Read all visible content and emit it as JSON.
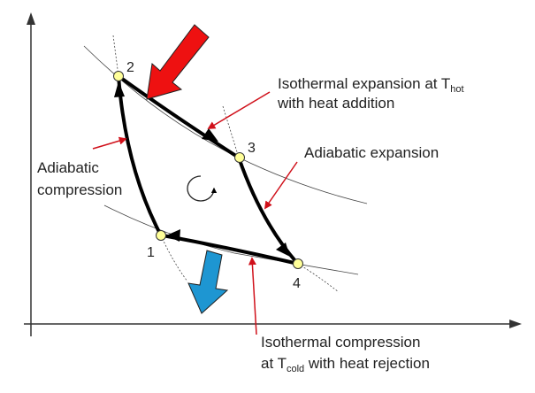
{
  "diagram": {
    "points": [
      {
        "id": "1",
        "label": "1"
      },
      {
        "id": "2",
        "label": "2"
      },
      {
        "id": "3",
        "label": "3"
      },
      {
        "id": "4",
        "label": "4"
      }
    ],
    "labels": {
      "iso_expansion_line1_prefix": "Isothermal expansion at T",
      "iso_expansion_line1_sub": "hot",
      "iso_expansion_line2": "with heat addition",
      "adiabatic_expansion": "Adiabatic expansion",
      "adiabatic_compression_line1": "Adiabatic",
      "adiabatic_compression_line2": "compression",
      "iso_compression_line1": "Isothermal compression",
      "iso_compression_line2_prefix": "at T",
      "iso_compression_line2_sub": "cold",
      "iso_compression_line2_suffix": " with heat rejection"
    },
    "colors": {
      "heat_in_arrow": "#ee1111",
      "heat_out_arrow": "#1e96d2",
      "pointer": "#d0101a",
      "cycle": "#000000",
      "state_point": "#ffff99"
    }
  }
}
